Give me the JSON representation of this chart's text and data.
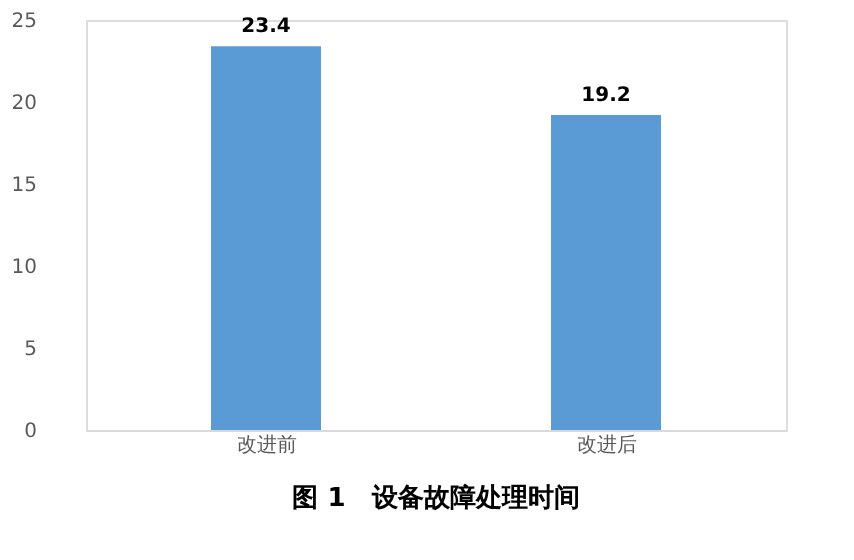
{
  "chart_data": {
    "type": "bar",
    "title": "图 1　设备故障处理时间",
    "categories": [
      "改进前",
      "改进后"
    ],
    "values": [
      23.4,
      19.2
    ],
    "color": "#5b9bd5",
    "ylim": [
      0,
      25
    ],
    "yticks": [
      0,
      5,
      10,
      15,
      20,
      25
    ],
    "grid": false,
    "data_labels": true
  }
}
